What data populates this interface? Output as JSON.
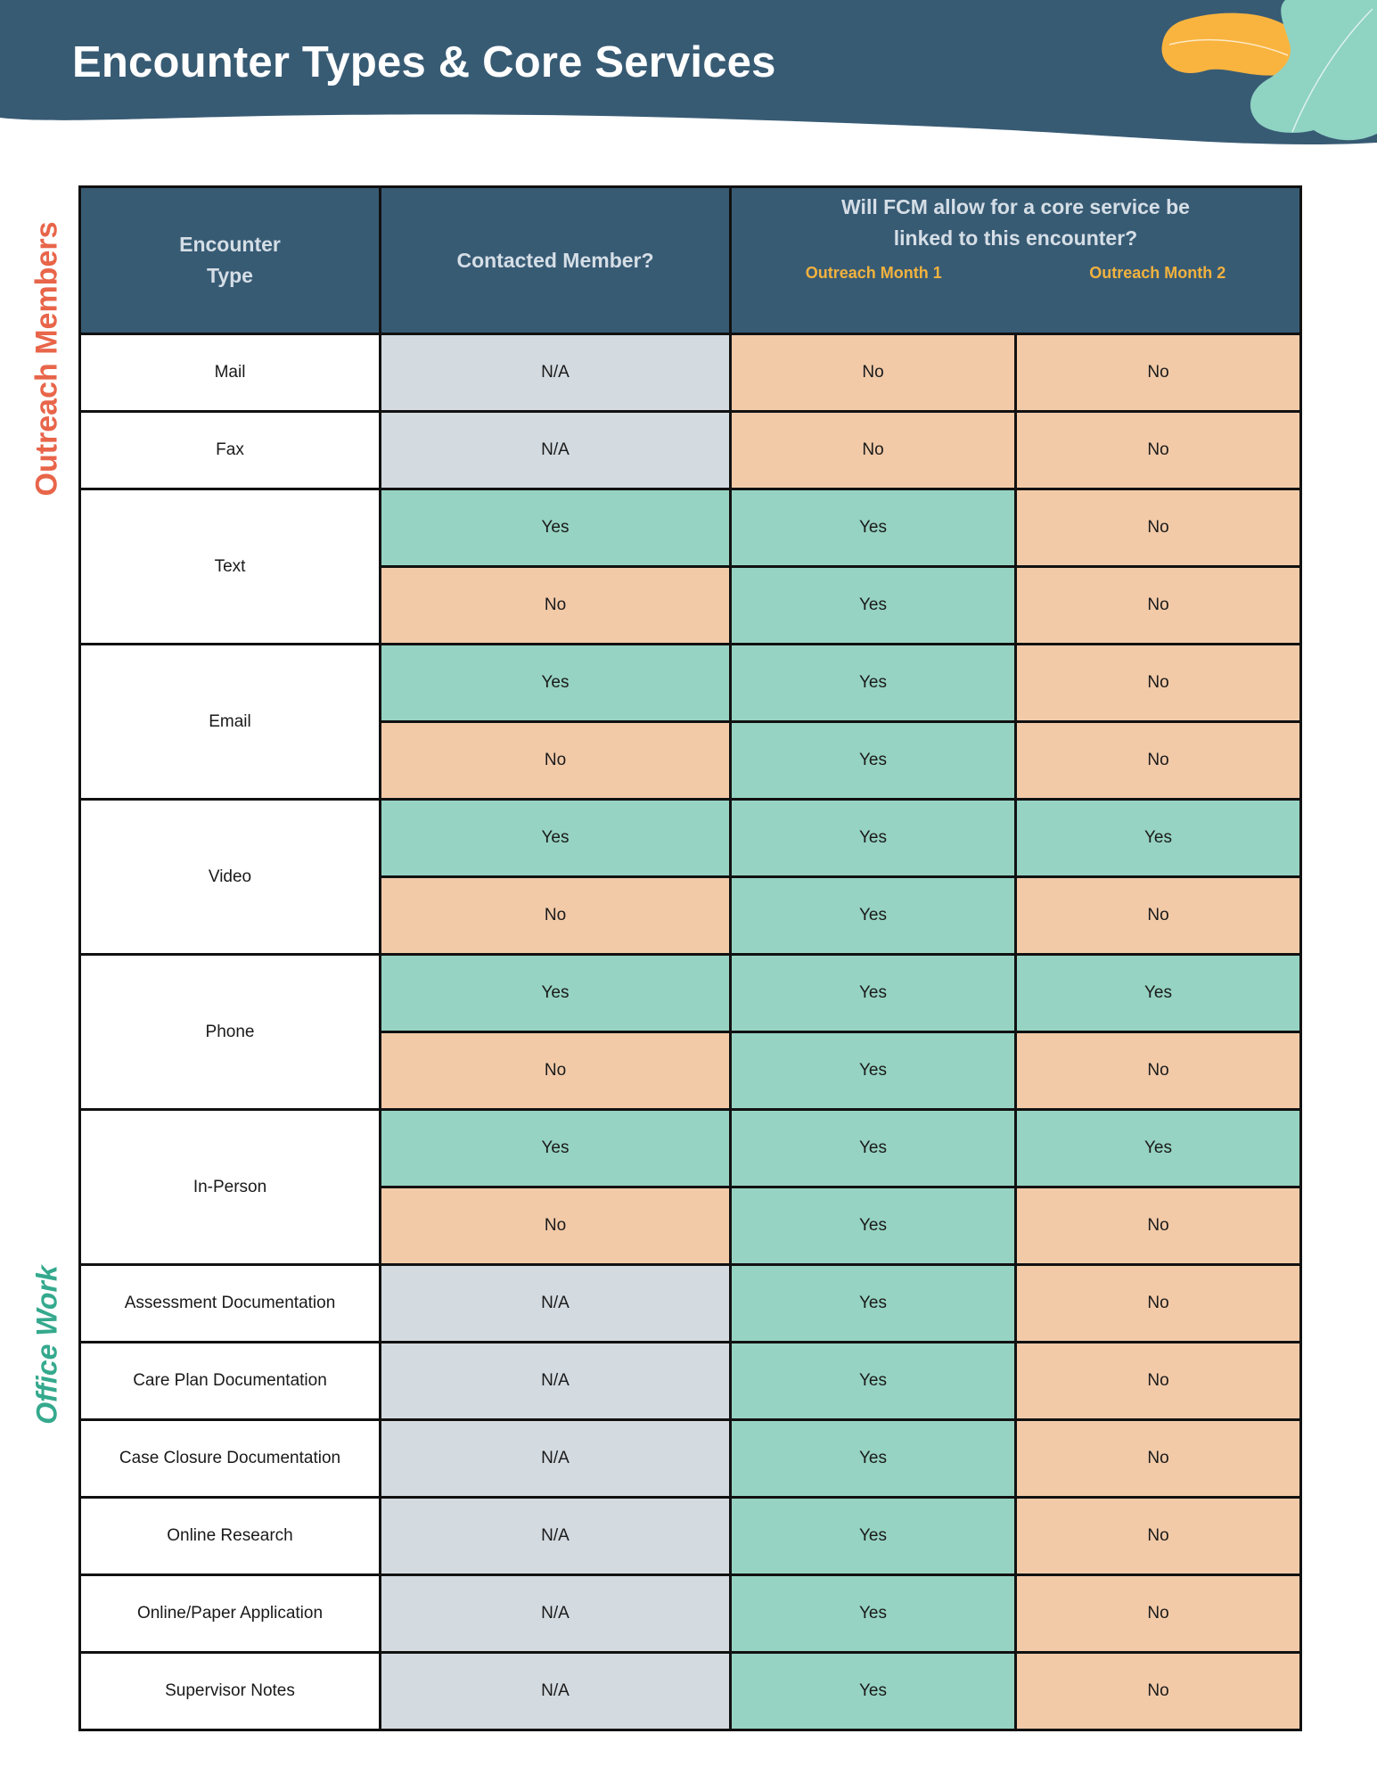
{
  "page": {
    "title": "Encounter Types & Core Services",
    "side_labels": {
      "outreach": "Outreach Members",
      "office": "Office Work"
    }
  },
  "colors": {
    "header_bg": "#385b74",
    "na": "#d3dae0",
    "yes": "#96d3c2",
    "no": "#f2caa8",
    "month_label": "#f2b23e",
    "outreach_label": "#e8654a",
    "office_label": "#34a98d"
  },
  "table": {
    "headers": {
      "encounter_type_line1": "Encounter",
      "encounter_type_line2": "Type",
      "contacted": "Contacted Member?",
      "question_line1": "Will FCM allow for a core service be",
      "question_line2": "linked to this encounter?",
      "month1": "Outreach Month 1",
      "month2": "Outreach Month 2"
    },
    "rows": [
      {
        "type": "Mail",
        "contacted": "N/A",
        "month1": "No",
        "month2": "No"
      },
      {
        "type": "Fax",
        "contacted": "N/A",
        "month1": "No",
        "month2": "No"
      },
      {
        "type": "Text",
        "contacted": "Yes",
        "month1": "Yes",
        "month2": "No"
      },
      {
        "type": "Text",
        "contacted": "No",
        "month1": "Yes",
        "month2": "No"
      },
      {
        "type": "Email",
        "contacted": "Yes",
        "month1": "Yes",
        "month2": "No"
      },
      {
        "type": "Email",
        "contacted": "No",
        "month1": "Yes",
        "month2": "No"
      },
      {
        "type": "Video",
        "contacted": "Yes",
        "month1": "Yes",
        "month2": "Yes"
      },
      {
        "type": "Video",
        "contacted": "No",
        "month1": "Yes",
        "month2": "No"
      },
      {
        "type": "Phone",
        "contacted": "Yes",
        "month1": "Yes",
        "month2": "Yes"
      },
      {
        "type": "Phone",
        "contacted": "No",
        "month1": "Yes",
        "month2": "No"
      },
      {
        "type": "In-Person",
        "contacted": "Yes",
        "month1": "Yes",
        "month2": "Yes"
      },
      {
        "type": "In-Person",
        "contacted": "No",
        "month1": "Yes",
        "month2": "No"
      },
      {
        "type": "Assessment Documentation",
        "contacted": "N/A",
        "month1": "Yes",
        "month2": "No"
      },
      {
        "type": "Care Plan Documentation",
        "contacted": "N/A",
        "month1": "Yes",
        "month2": "No"
      },
      {
        "type": "Case Closure Documentation",
        "contacted": "N/A",
        "month1": "Yes",
        "month2": "No"
      },
      {
        "type": "Online Research",
        "contacted": "N/A",
        "month1": "Yes",
        "month2": "No"
      },
      {
        "type": "Online/Paper Application",
        "contacted": "N/A",
        "month1": "Yes",
        "month2": "No"
      },
      {
        "type": "Supervisor Notes",
        "contacted": "N/A",
        "month1": "Yes",
        "month2": "No"
      }
    ]
  }
}
